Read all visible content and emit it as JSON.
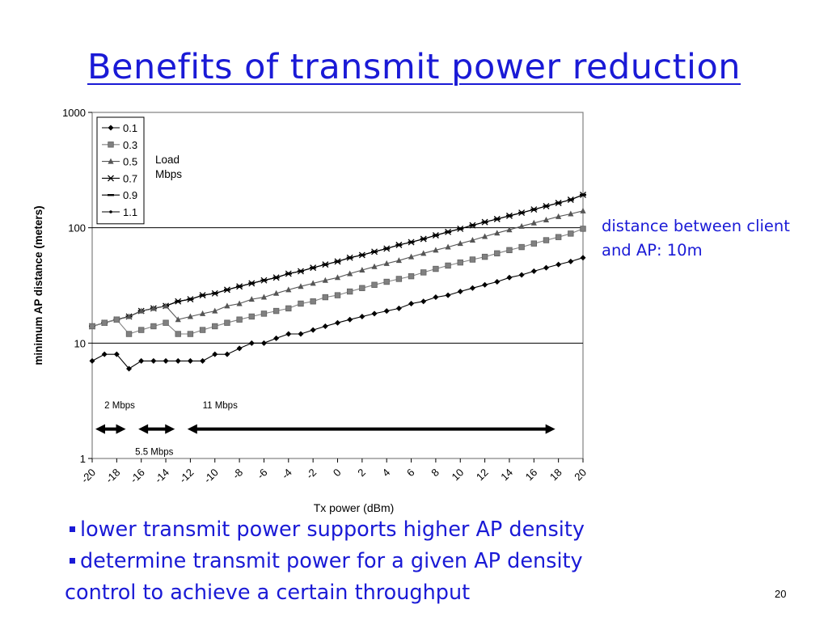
{
  "slide": {
    "title": "Benefits of transmit power reduction",
    "side_note": "distance between client and AP: 10m",
    "bullets": [
      "lower transmit power supports higher AP density",
      "determine transmit power for a given AP density"
    ],
    "continuation": "control to achieve a certain throughput",
    "page_number": "20"
  },
  "colors": {
    "text_blue": "#1a1ad6",
    "series": "#000000"
  },
  "chart_data": {
    "type": "line",
    "title": "",
    "xlabel": "Tx power (dBm)",
    "ylabel": "minimum AP distance (meters)",
    "x": [
      -20,
      -19,
      -18,
      -17,
      -16,
      -15,
      -14,
      -13,
      -12,
      -11,
      -10,
      -9,
      -8,
      -7,
      -6,
      -5,
      -4,
      -3,
      -2,
      -1,
      0,
      1,
      2,
      3,
      4,
      5,
      6,
      7,
      8,
      9,
      10,
      11,
      12,
      13,
      14,
      15,
      16,
      17,
      18,
      19,
      20
    ],
    "xticks": [
      -20,
      -18,
      -16,
      -14,
      -12,
      -10,
      -8,
      -6,
      -4,
      -2,
      0,
      2,
      4,
      6,
      8,
      10,
      12,
      14,
      16,
      18,
      20
    ],
    "xlim": [
      -20,
      20
    ],
    "yscale": "log",
    "ylim": [
      1,
      1000
    ],
    "yticks": [
      1,
      10,
      100,
      1000
    ],
    "grid": "major y lines",
    "legend": {
      "title": "Load Mbps",
      "placement": "top-left"
    },
    "series": [
      {
        "name": "0.1",
        "marker": "diamond",
        "values": [
          7,
          8,
          8,
          6,
          7,
          7,
          7,
          7,
          7,
          7,
          8,
          8,
          9,
          10,
          10,
          11,
          12,
          12,
          13,
          14,
          15,
          16,
          17,
          18,
          19,
          20,
          22,
          23,
          25,
          26,
          28,
          30,
          32,
          34,
          37,
          39,
          42,
          45,
          48,
          51,
          55
        ]
      },
      {
        "name": "0.3",
        "marker": "square",
        "values": [
          14,
          15,
          16,
          12,
          13,
          14,
          15,
          12,
          12,
          13,
          14,
          15,
          16,
          17,
          18,
          19,
          20,
          22,
          23,
          25,
          26,
          28,
          30,
          32,
          34,
          36,
          38,
          41,
          44,
          47,
          50,
          53,
          56,
          60,
          64,
          68,
          73,
          78,
          83,
          89,
          98
        ]
      },
      {
        "name": "0.5",
        "marker": "triangle",
        "values": [
          14,
          15,
          16,
          17,
          19,
          20,
          21,
          16,
          17,
          18,
          19,
          21,
          22,
          24,
          25,
          27,
          29,
          31,
          33,
          35,
          37,
          40,
          43,
          46,
          49,
          52,
          56,
          60,
          64,
          68,
          73,
          78,
          84,
          90,
          96,
          103,
          110,
          117,
          125,
          132,
          140
        ]
      },
      {
        "name": "0.7",
        "marker": "x",
        "values": [
          14,
          15,
          16,
          17,
          19,
          20,
          21,
          23,
          24,
          26,
          27,
          29,
          31,
          33,
          35,
          37,
          40,
          42,
          45,
          48,
          51,
          55,
          58,
          62,
          66,
          71,
          75,
          80,
          86,
          92,
          98,
          105,
          112,
          119,
          127,
          135,
          144,
          154,
          164,
          175,
          193
        ]
      },
      {
        "name": "0.9",
        "marker": "dash",
        "values": [
          14,
          15,
          16,
          17,
          19,
          20,
          21,
          23,
          24,
          26,
          27,
          29,
          31,
          33,
          35,
          37,
          40,
          42,
          45,
          48,
          51,
          55,
          58,
          62,
          66,
          71,
          75,
          80,
          86,
          92,
          98,
          105,
          112,
          119,
          127,
          135,
          144,
          154,
          164,
          175,
          193
        ]
      },
      {
        "name": "1.1",
        "marker": "dot",
        "values": [
          14,
          15,
          16,
          17,
          19,
          20,
          21,
          23,
          24,
          26,
          27,
          29,
          31,
          33,
          35,
          37,
          40,
          42,
          45,
          48,
          51,
          55,
          58,
          62,
          66,
          71,
          75,
          80,
          86,
          92,
          98,
          105,
          112,
          119,
          127,
          135,
          144,
          154,
          164,
          175,
          193
        ]
      }
    ],
    "annotations": [
      {
        "text": "2 Mbps",
        "label_x": -19,
        "label_y": 2.9,
        "arrow": [
          -20,
          -17
        ],
        "arrow_y": 1.8
      },
      {
        "text": "5.5 Mbps",
        "label_x": -16.5,
        "label_y": 1.15,
        "arrow": [
          -16.5,
          -13
        ],
        "arrow_y": 1.8
      },
      {
        "text": "11 Mbps",
        "label_x": -11,
        "label_y": 2.9,
        "arrow": [
          -12.5,
          18
        ],
        "arrow_y": 1.8
      }
    ]
  }
}
